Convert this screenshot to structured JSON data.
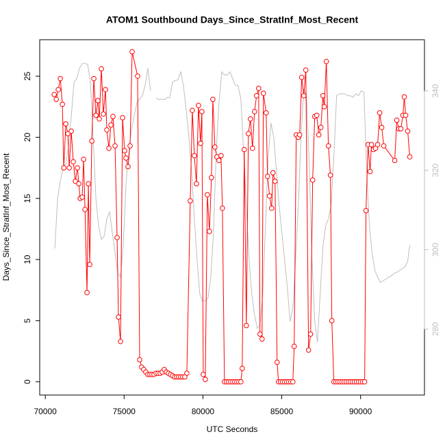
{
  "chart_data": {
    "type": "line",
    "title": "ATOM1 Southbound Days_Since_StratInf_Most_Recent",
    "x_label": "UTC Seconds",
    "y_label": "Days_Since_StratInf_Most_Recent",
    "xlim": [
      69646,
      94054
    ],
    "xticks": [
      70000,
      75000,
      80000,
      85000,
      90000
    ],
    "ylim": [
      -1.08,
      27.98
    ],
    "yticks": [
      0,
      5,
      10,
      15,
      20,
      25
    ],
    "y2lim": [
      263.4,
      352.9
    ],
    "y2ticks": [
      280,
      300,
      320,
      340
    ],
    "y2_color": "#bebebe",
    "series": [
      {
        "color": "#ff0000",
        "markers": true,
        "x": [
          70564,
          70694,
          70824,
          70954,
          71085,
          71171,
          71301,
          71432,
          71518,
          71648,
          71778,
          71909,
          72039,
          72126,
          72213,
          72343,
          72430,
          72517,
          72647,
          72733,
          72820,
          72950,
          73080,
          73210,
          73340,
          73427,
          73557,
          73687,
          73817,
          73904,
          74034,
          74164,
          74295,
          74425,
          74555,
          74642,
          74772,
          74902,
          75032,
          75119,
          75249,
          75379,
          75509,
          75856,
          75986,
          76116,
          76247,
          76377,
          76507,
          76637,
          76767,
          76897,
          77028,
          77158,
          77288,
          77418,
          77548,
          77678,
          77808,
          77939,
          78069,
          78199,
          78329,
          78459,
          78589,
          78719,
          78849,
          78980,
          79197,
          79327,
          79458,
          79588,
          79718,
          79848,
          79934,
          80021,
          80151,
          80281,
          80412,
          80542,
          80629,
          80759,
          80889,
          81019,
          81149,
          81236,
          81366,
          81496,
          81626,
          81756,
          81887,
          82017,
          82147,
          82277,
          82407,
          82493,
          82623,
          82754,
          82884,
          83014,
          83144,
          83274,
          83404,
          83534,
          83621,
          83751,
          83838,
          84011,
          84098,
          84228,
          84359,
          84445,
          84576,
          84706,
          84793,
          84923,
          85053,
          85183,
          85313,
          85443,
          85573,
          85704,
          85790,
          85920,
          86050,
          86137,
          86267,
          86397,
          86528,
          86701,
          86831,
          86961,
          87092,
          87222,
          87352,
          87482,
          87612,
          87699,
          87829,
          87960,
          88090,
          88177,
          88307,
          88437,
          88567,
          88697,
          88827,
          88957,
          89087,
          89218,
          89348,
          89478,
          89608,
          89738,
          89868,
          89998,
          90128,
          90259,
          90345,
          90476,
          90606,
          90692,
          90823,
          90953,
          91083,
          91213,
          91344,
          91474,
          92168,
          92298,
          92428,
          92558,
          92689,
          92775,
          92862,
          92992,
          93122
        ],
        "values": [
          23.5,
          23.1,
          23.9,
          24.8,
          22.7,
          17.5,
          21.1,
          20.3,
          17.5,
          20.5,
          18.0,
          16.4,
          17.5,
          16.2,
          15.0,
          15.1,
          18.2,
          14.1,
          7.3,
          16.2,
          9.6,
          19.7,
          24.8,
          21.8,
          23.0,
          21.5,
          25.6,
          21.9,
          23.9,
          20.6,
          19.1,
          21.0,
          21.7,
          19.3,
          11.8,
          5.3,
          3.3,
          21.6,
          18.9,
          18.3,
          17.6,
          19.3,
          27.0,
          25.0,
          1.8,
          1.2,
          1.0,
          0.8,
          0.6,
          0.6,
          0.6,
          0.6,
          0.7,
          0.7,
          0.7,
          0.8,
          1.0,
          0.8,
          0.7,
          0.6,
          0.5,
          0.4,
          0.4,
          0.4,
          0.4,
          0.4,
          0.4,
          0.7,
          14.8,
          22.2,
          18.5,
          16.2,
          22.6,
          19.5,
          22.1,
          0.6,
          0.2,
          15.3,
          12.3,
          16.7,
          23.1,
          19.2,
          18.4,
          18.1,
          18.5,
          14.2,
          0,
          0,
          0,
          0,
          0,
          0,
          0,
          0,
          0,
          1.1,
          19.0,
          4.6,
          20.3,
          21.5,
          19.1,
          22.1,
          23.4,
          24.0,
          3.9,
          3.5,
          23.6,
          22.0,
          16.8,
          15.2,
          14.2,
          17.1,
          16.4,
          1.6,
          0,
          0,
          0,
          0,
          0,
          0,
          0,
          0,
          2.9,
          20.2,
          20.0,
          20.2,
          24.9,
          23.4,
          25.5,
          2.6,
          3.9,
          16.5,
          21.7,
          21.8,
          20.2,
          20.8,
          23.4,
          22.5,
          26.2,
          19.3,
          16.9,
          5.0,
          0,
          0,
          0,
          0,
          0,
          0,
          0,
          0,
          0,
          0,
          0,
          0,
          0,
          0,
          0,
          0,
          14.0,
          19.4,
          17.2,
          19.4,
          19.0,
          19.1,
          19.4,
          22.0,
          20.8,
          19.3,
          18.1,
          21.4,
          20.7,
          20.7,
          21.8,
          23.3,
          21.8,
          20.5,
          18.4
        ]
      },
      {
        "color": "#bebebe",
        "axis": "y2",
        "markers": false,
        "x": [
          70607,
          70781,
          70954,
          71128,
          71301,
          71475,
          71648,
          71822,
          71995,
          72169,
          72343,
          72516,
          72690,
          72863,
          73037,
          73210,
          73384,
          73557,
          73731,
          73904,
          74078,
          74251,
          74425,
          74598,
          74772,
          74945,
          75119,
          75292,
          75466,
          75639,
          75813,
          75986,
          76160,
          76333,
          76507,
          76681,
          76854,
          77028,
          77201,
          77375,
          77548,
          77722,
          77895,
          78069,
          78242,
          78416,
          78589,
          78763,
          78936,
          79110,
          79283,
          79457,
          79630,
          79804,
          79977,
          80151,
          80324,
          80498,
          80671,
          80845,
          81019,
          81192,
          81366,
          81539,
          81713,
          81886,
          82060,
          82233,
          82407,
          82580,
          82754,
          82927,
          83101,
          83274,
          83448,
          83621,
          83795,
          83968,
          84142,
          84315,
          84489,
          84662,
          84836,
          85009,
          85183,
          85357,
          85530,
          85704,
          85877,
          86051,
          86224,
          86398,
          86571,
          86745,
          86918,
          87092,
          87265,
          87439,
          87612,
          87786,
          87959,
          88133,
          88306,
          88480,
          88653,
          88827,
          89000,
          89174,
          89347,
          89521,
          89695,
          89868,
          90042,
          90215,
          90389,
          90562,
          90736,
          90909,
          91083,
          91256,
          91430,
          91603,
          91777,
          91950,
          92124,
          92297,
          92471,
          92644,
          92818,
          92991,
          93121
        ],
        "values": [
          300.3,
          313,
          317.2,
          320.7,
          321.6,
          325.9,
          333.6,
          342.2,
          343.1,
          345.7,
          346.9,
          346.9,
          346.7,
          342.2,
          328.4,
          312.9,
          306,
          302.6,
          303.4,
          307.8,
          309.5,
          304.3,
          299.1,
          294,
          293.1,
          300.9,
          316.4,
          325,
          330.2,
          333.6,
          337.1,
          337.9,
          338.8,
          341.4,
          345.7,
          340,
          null,
          338.3,
          337.8,
          337.9,
          337.8,
          338.3,
          338.3,
          342.2,
          342.6,
          342.8,
          344.8,
          341.4,
          335.3,
          328.4,
          319.8,
          307.8,
          297.4,
          288.8,
          287.1,
          287.1,
          287.9,
          293.1,
          304.3,
          325,
          337.1,
          344.8,
          344,
          344,
          344.8,
          343.1,
          341.4,
          341.4,
          337.9,
          325,
          311.2,
          297.4,
          288.8,
          283.6,
          280.2,
          281,
          288.8,
          306,
          323.3,
          331.9,
          328.4,
          319.8,
          311.2,
          304.3,
          297.4,
          290.5,
          281.9,
          285.3,
          297.4,
          311.2,
          328.4,
          340.5,
          338.8,
          321.6,
          297.4,
          281.9,
          276.7,
          288.8,
          300.9,
          306,
          307.8,
          311.2,
          323.3,
          338.8,
          339.3,
          339.3,
          339.3,
          338.8,
          338.8,
          338.4,
          339.3,
          338.8,
          340,
          339.7,
          319.8,
          306,
          299.1,
          294.8,
          293.1,
          291.7,
          292.2,
          292.6,
          293.1,
          293.4,
          294,
          294.3,
          294.8,
          295.2,
          295.7,
          297.1,
          301.2
        ]
      }
    ]
  }
}
